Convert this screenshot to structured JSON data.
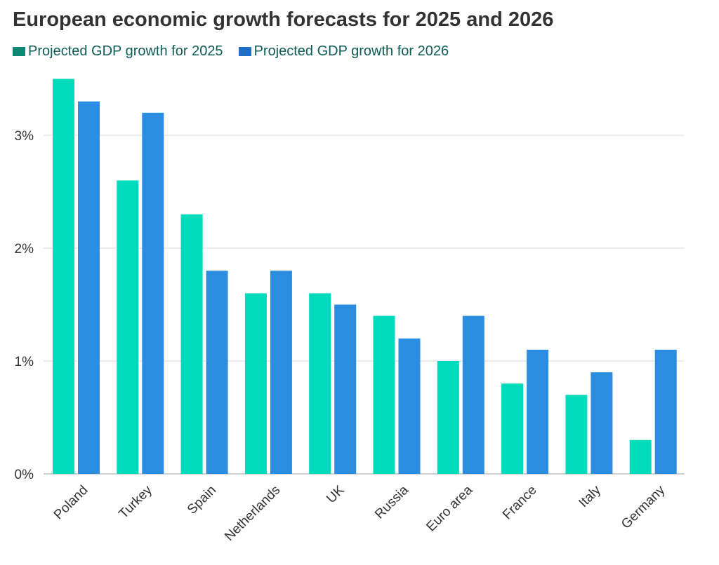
{
  "title": "European economic growth forecasts for 2025 and 2026",
  "legend": [
    {
      "label": "Projected GDP growth for 2025",
      "swatch_color": "#0b8a73"
    },
    {
      "label": "Projected GDP growth for 2026",
      "swatch_color": "#1f6fc4"
    }
  ],
  "chart_data": {
    "type": "bar",
    "title": "European economic growth forecasts for 2025 and 2026",
    "xlabel": "",
    "ylabel": "",
    "categories": [
      "Poland",
      "Turkey",
      "Spain",
      "Netherlands",
      "UK",
      "Russia",
      "Euro area",
      "France",
      "Italy",
      "Germany"
    ],
    "series": [
      {
        "name": "Projected GDP growth for 2025",
        "color": "#00dbbb",
        "values": [
          3.5,
          2.6,
          2.3,
          1.6,
          1.6,
          1.4,
          1.0,
          0.8,
          0.7,
          0.3
        ]
      },
      {
        "name": "Projected GDP growth for 2026",
        "color": "#2a8de0",
        "values": [
          3.3,
          3.2,
          1.8,
          1.8,
          1.5,
          1.2,
          1.4,
          1.1,
          0.9,
          1.1
        ]
      }
    ],
    "ylim": [
      0,
      3.5
    ],
    "yticks": [
      0,
      1,
      2,
      3
    ],
    "ytick_labels": [
      "0%",
      "1%",
      "2%",
      "3%"
    ],
    "grid": true,
    "legend_position": "top-left"
  }
}
